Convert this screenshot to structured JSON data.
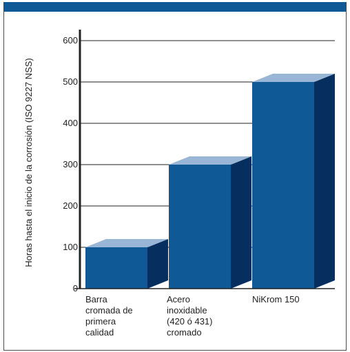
{
  "chart_data": {
    "type": "bar",
    "title": "",
    "xlabel": "",
    "ylabel": "Horas hasta el inicio de la corrosión (ISO 9227 NSS)",
    "categories": [
      [
        "Barra",
        "cromada de",
        "primera",
        "calidad"
      ],
      [
        "Acero",
        "inoxidable",
        "(420 ó 431)",
        "cromado"
      ],
      [
        "NiKrom 150"
      ]
    ],
    "values": [
      100,
      300,
      500
    ],
    "ylim": [
      0,
      600
    ],
    "yticks": [
      0,
      100,
      200,
      300,
      400,
      500,
      600
    ],
    "grid": true,
    "legend": "none"
  },
  "colors": {
    "bar_front": "#0f5a96",
    "bar_side": "#062f5f",
    "bar_top": "#9ab6d6",
    "header_bar": "#0f5a96",
    "axis": "#222222"
  }
}
